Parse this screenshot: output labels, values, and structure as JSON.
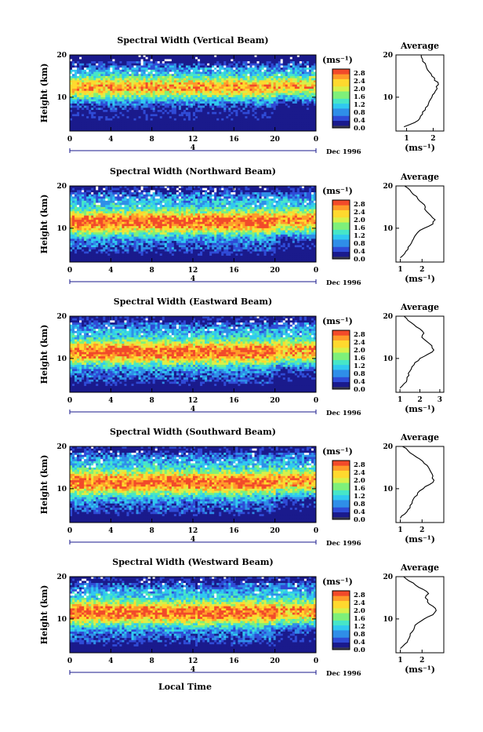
{
  "x_axis_label": "Local Time",
  "date_label": "Dec 1996",
  "day_label": "4",
  "height_label": "Height (km)",
  "unit_label": "(ms⁻¹)",
  "average_title": "Average",
  "colorbar_ticks": [
    "2.8",
    "2.4",
    "2.0",
    "1.6",
    "1.2",
    "0.8",
    "0.4",
    "0.0"
  ],
  "colors": {
    "scale": [
      "#1a1a8c",
      "#2f4bd6",
      "#2f8ee8",
      "#30c9f0",
      "#46e6c8",
      "#7ef07a",
      "#d8f04a",
      "#ffd92e",
      "#ff9a2a",
      "#f24a2a"
    ],
    "background": "#ffffff"
  },
  "chart_data": [
    {
      "type": "heatmap",
      "title": "Spectral Width (Vertical Beam)",
      "xlabel": "",
      "ylabel": "Height (km)",
      "xlim": [
        0,
        24
      ],
      "ylim": [
        2,
        20
      ],
      "x_ticks": [
        "0",
        "4",
        "8",
        "12",
        "16",
        "20",
        "0"
      ],
      "y_ticks": [
        "10",
        "20"
      ],
      "colorbar": {
        "label": "(ms⁻¹)",
        "range": [
          0.0,
          3.0
        ]
      },
      "profile": {
        "title": "Average",
        "x_ticks": [
          "1",
          "2"
        ],
        "xlim": [
          0.6,
          2.4
        ],
        "height": [
          3,
          4,
          5,
          6,
          7,
          8,
          9,
          10,
          11,
          12,
          13,
          14,
          15,
          16,
          17,
          18,
          19,
          20
        ],
        "width": [
          0.9,
          1.3,
          1.5,
          1.6,
          1.7,
          1.8,
          1.85,
          1.95,
          2.05,
          2.15,
          2.2,
          2.05,
          1.95,
          1.85,
          1.75,
          1.7,
          1.6,
          1.55
        ]
      }
    },
    {
      "type": "heatmap",
      "title": "Spectral Width (Northward Beam)",
      "xlabel": "",
      "ylabel": "Height (km)",
      "xlim": [
        0,
        24
      ],
      "ylim": [
        2,
        20
      ],
      "x_ticks": [
        "0",
        "4",
        "8",
        "12",
        "16",
        "20",
        "0"
      ],
      "y_ticks": [
        "10",
        "20"
      ],
      "colorbar": {
        "label": "(ms⁻¹)",
        "range": [
          0.0,
          3.0
        ]
      },
      "profile": {
        "title": "Average",
        "x_ticks": [
          "1",
          "2"
        ],
        "xlim": [
          0.8,
          3.0
        ],
        "height": [
          3,
          4,
          5,
          6,
          7,
          8,
          9,
          10,
          11,
          12,
          13,
          14,
          15,
          16,
          17,
          18,
          19,
          20
        ],
        "width": [
          1.0,
          1.2,
          1.35,
          1.45,
          1.55,
          1.65,
          1.8,
          2.1,
          2.5,
          2.6,
          2.4,
          2.2,
          2.15,
          2.0,
          1.8,
          1.6,
          1.45,
          1.2
        ]
      }
    },
    {
      "type": "heatmap",
      "title": "Spectral Width (Eastward Beam)",
      "xlabel": "",
      "ylabel": "Height (km)",
      "xlim": [
        0,
        24
      ],
      "ylim": [
        2,
        20
      ],
      "x_ticks": [
        "0",
        "4",
        "8",
        "12",
        "16",
        "20",
        "0"
      ],
      "y_ticks": [
        "10",
        "20"
      ],
      "colorbar": {
        "label": "(ms⁻¹)",
        "range": [
          0.0,
          3.0
        ]
      },
      "profile": {
        "title": "Average",
        "x_ticks": [
          "1",
          "2",
          "3"
        ],
        "xlim": [
          0.8,
          3.2
        ],
        "height": [
          3,
          4,
          5,
          6,
          7,
          8,
          9,
          10,
          11,
          12,
          13,
          14,
          15,
          16,
          17,
          18,
          19,
          20
        ],
        "width": [
          1.0,
          1.2,
          1.35,
          1.45,
          1.5,
          1.6,
          1.75,
          2.0,
          2.4,
          2.7,
          2.6,
          2.35,
          2.1,
          2.2,
          2.0,
          1.7,
          1.4,
          1.2
        ]
      }
    },
    {
      "type": "heatmap",
      "title": "Spectral Width (Southward Beam)",
      "xlabel": "",
      "ylabel": "Height (km)",
      "xlim": [
        0,
        24
      ],
      "ylim": [
        2,
        20
      ],
      "x_ticks": [
        "0",
        "4",
        "8",
        "12",
        "16",
        "20",
        "0"
      ],
      "y_ticks": [
        "10",
        "20"
      ],
      "colorbar": {
        "label": "(ms⁻¹)",
        "range": [
          0.0,
          3.0
        ]
      },
      "profile": {
        "title": "Average",
        "x_ticks": [
          "1",
          "2"
        ],
        "xlim": [
          0.8,
          3.0
        ],
        "height": [
          3,
          4,
          5,
          6,
          7,
          8,
          9,
          10,
          11,
          12,
          13,
          14,
          15,
          16,
          17,
          18,
          19,
          20
        ],
        "width": [
          1.0,
          1.2,
          1.35,
          1.45,
          1.55,
          1.65,
          1.8,
          2.05,
          2.35,
          2.55,
          2.5,
          2.4,
          2.3,
          2.1,
          1.9,
          1.6,
          1.35,
          1.1
        ]
      }
    },
    {
      "type": "heatmap",
      "title": "Spectral Width (Westward Beam)",
      "xlabel": "Local Time",
      "ylabel": "Height (km)",
      "xlim": [
        0,
        24
      ],
      "ylim": [
        2,
        20
      ],
      "x_ticks": [
        "0",
        "4",
        "8",
        "12",
        "16",
        "20",
        "0"
      ],
      "y_ticks": [
        "10",
        "20"
      ],
      "colorbar": {
        "label": "(ms⁻¹)",
        "range": [
          0.0,
          3.0
        ]
      },
      "profile": {
        "title": "Average",
        "x_ticks": [
          "1",
          "2"
        ],
        "xlim": [
          0.8,
          3.0
        ],
        "height": [
          3,
          4,
          5,
          6,
          7,
          8,
          9,
          10,
          11,
          12,
          13,
          14,
          15,
          16,
          17,
          18,
          19,
          20
        ],
        "width": [
          1.0,
          1.2,
          1.35,
          1.45,
          1.55,
          1.65,
          1.8,
          2.1,
          2.5,
          2.65,
          2.5,
          2.25,
          2.15,
          2.3,
          2.05,
          1.7,
          1.4,
          1.15
        ]
      }
    }
  ]
}
